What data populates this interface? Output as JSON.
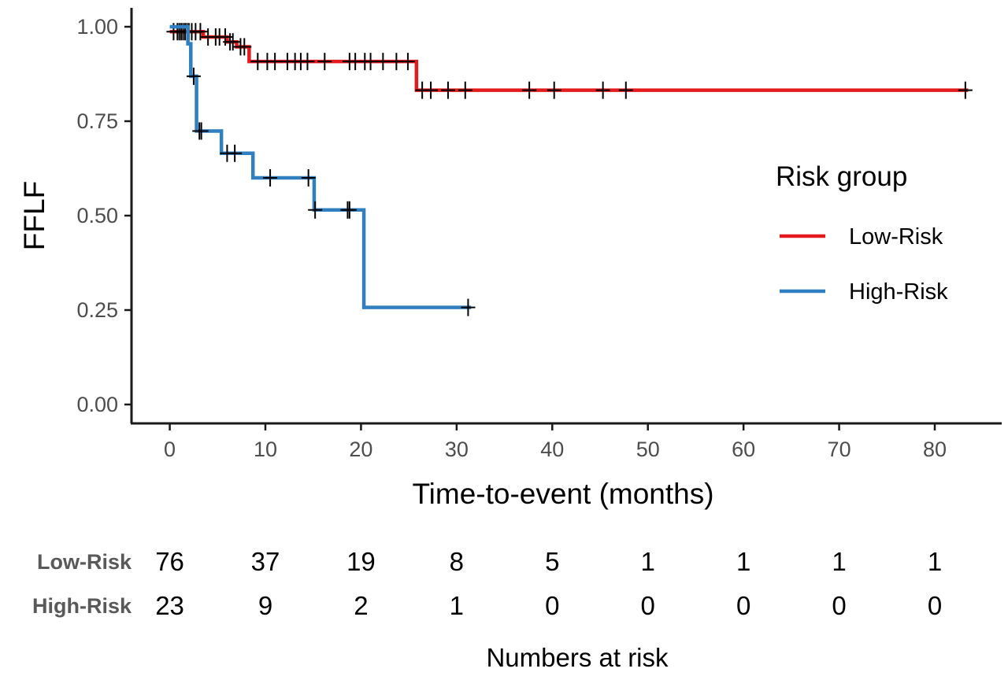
{
  "chart_data": {
    "type": "line",
    "subtype": "kaplan-meier-step",
    "title": "",
    "xlabel": "Time-to-event (months)",
    "ylabel": "FFLF",
    "xlim": [
      -4,
      87
    ],
    "ylim": [
      -0.05,
      1.05
    ],
    "xticks": [
      0,
      10,
      20,
      30,
      40,
      50,
      60,
      70,
      80
    ],
    "yticks": [
      0.0,
      0.25,
      0.5,
      0.75,
      1.0
    ],
    "ytick_labels": [
      "0.00",
      "0.25",
      "0.50",
      "0.75",
      "1.00"
    ],
    "grid": false,
    "legend": {
      "title": "Risk group",
      "placement": "right",
      "entries": [
        "Low-Risk",
        "High-Risk"
      ]
    },
    "series": [
      {
        "name": "Low-Risk",
        "color": "#e41a1c",
        "steps": [
          [
            0,
            0.987
          ],
          [
            3.5,
            0.973
          ],
          [
            6.0,
            0.96
          ],
          [
            7.0,
            0.947
          ],
          [
            8.3,
            0.908
          ],
          [
            25.8,
            0.832
          ],
          [
            83.5,
            0.832
          ]
        ],
        "censor_times": [
          0.4,
          0.8,
          1.0,
          1.2,
          1.4,
          1.6,
          1.8,
          2.0,
          2.3,
          2.7,
          3.2,
          4.0,
          4.8,
          5.2,
          5.8,
          6.3,
          6.6,
          7.4,
          7.8,
          9.2,
          10.2,
          11.0,
          12.3,
          13.1,
          13.7,
          14.4,
          16.2,
          18.8,
          19.4,
          20.4,
          21.0,
          22.3,
          23.7,
          24.9,
          26.4,
          27.3,
          29.1,
          30.9,
          37.6,
          40.2,
          45.3,
          47.7,
          83.2
        ]
      },
      {
        "name": "High-Risk",
        "color": "#2f7fc1",
        "steps": [
          [
            0,
            1.0
          ],
          [
            1.9,
            0.955
          ],
          [
            2.2,
            0.869
          ],
          [
            2.8,
            0.724
          ],
          [
            5.4,
            0.665
          ],
          [
            8.7,
            0.6
          ],
          [
            15.1,
            0.515
          ],
          [
            20.3,
            0.257
          ],
          [
            31.5,
            0.257
          ]
        ],
        "censor_times": [
          2.5,
          3.1,
          3.3,
          6.0,
          6.8,
          10.5,
          14.5,
          15.2,
          18.6,
          18.8,
          31.2
        ]
      }
    ],
    "risk_table": {
      "title": "Numbers at risk",
      "times": [
        0,
        10,
        20,
        30,
        40,
        50,
        60,
        70,
        80
      ],
      "rows": [
        {
          "label": "Low-Risk",
          "counts": [
            "76",
            "37",
            "19",
            "8",
            "5",
            "1",
            "1",
            "1",
            "1"
          ]
        },
        {
          "label": "High-Risk",
          "counts": [
            "23",
            "9",
            "2",
            "1",
            "0",
            "0",
            "0",
            "0",
            "0"
          ]
        }
      ]
    }
  }
}
